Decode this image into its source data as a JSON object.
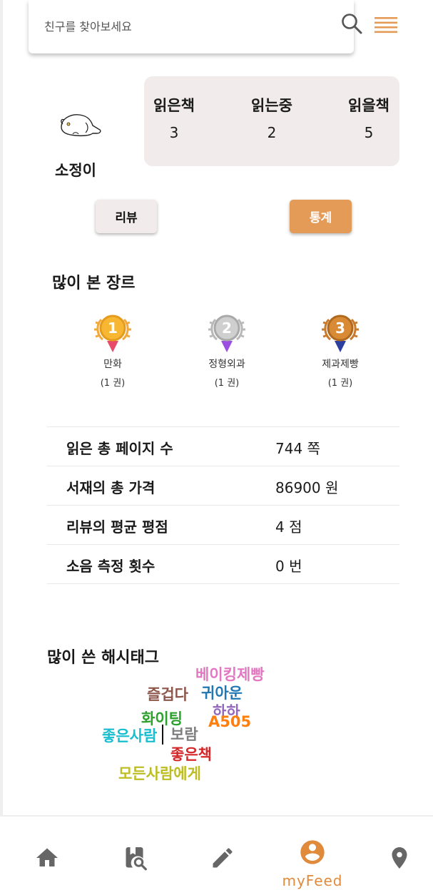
{
  "search": {
    "placeholder": "친구를 찾아보세요"
  },
  "profile": {
    "name": "소정이",
    "stats": [
      {
        "label": "읽은책",
        "value": "3"
      },
      {
        "label": "읽는중",
        "value": "2"
      },
      {
        "label": "읽을책",
        "value": "5"
      }
    ]
  },
  "buttons": {
    "review": "리뷰",
    "stats": "통계"
  },
  "genres": {
    "title": "많이 본 장르",
    "items": [
      {
        "rank": "1",
        "name": "만화",
        "count": "(1 권)",
        "color": "#f2a93b"
      },
      {
        "rank": "2",
        "name": "정형외과",
        "count": "(1 권)",
        "color": "#b9b9b9"
      },
      {
        "rank": "3",
        "name": "제과제빵",
        "count": "(1 권)",
        "color": "#c97a2a"
      }
    ]
  },
  "summary": {
    "rows": [
      {
        "label": "읽은 총 페이지 수",
        "value": "744 쪽"
      },
      {
        "label": "서재의 총 가격",
        "value": "86900 원"
      },
      {
        "label": "리뷰의 평균 평점",
        "value": "4 점"
      },
      {
        "label": "소음 측정 횟수",
        "value": "0 번"
      }
    ]
  },
  "hashtags": {
    "title": "많이 쓴 해시태그",
    "tags": [
      {
        "text": "베이킹제빵",
        "color": "#e377c2"
      },
      {
        "text": "즐겁다",
        "color": "#8c564b"
      },
      {
        "text": "귀아운",
        "color": "#1f77b4"
      },
      {
        "text": "하하",
        "color": "#9467bd"
      },
      {
        "text": "화이팅",
        "color": "#2ca02c"
      },
      {
        "text": "A505",
        "color": "#ff7f0e"
      },
      {
        "text": "좋은사람",
        "color": "#17becf"
      },
      {
        "text": "보람",
        "color": "#7f7f7f"
      },
      {
        "text": "좋은책",
        "color": "#d62728"
      },
      {
        "text": "모든사람에게",
        "color": "#bcbd22"
      }
    ]
  },
  "nav": {
    "items": [
      {
        "icon": "home-icon"
      },
      {
        "icon": "book-search-icon"
      },
      {
        "icon": "pencil-icon"
      },
      {
        "icon": "account-icon",
        "label": "myFeed",
        "active": true
      },
      {
        "icon": "location-pin-icon"
      }
    ],
    "accent": "#e08a3c"
  }
}
